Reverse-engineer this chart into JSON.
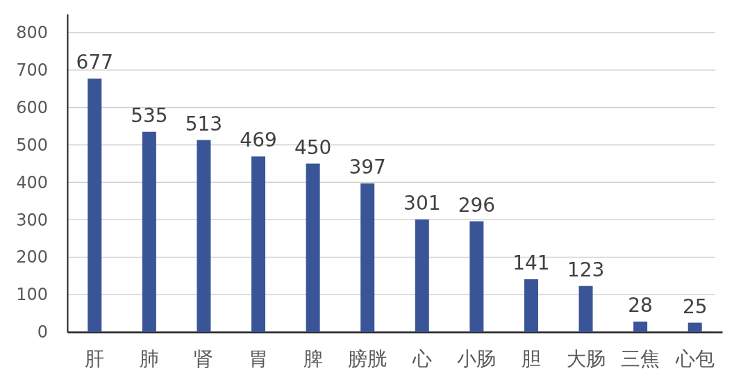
{
  "chart_data": {
    "type": "bar",
    "categories": [
      "肝",
      "肺",
      "肾",
      "胃",
      "脾",
      "膀胱",
      "心",
      "小肠",
      "胆",
      "大肠",
      "三焦",
      "心包"
    ],
    "values": [
      677,
      535,
      513,
      469,
      450,
      397,
      301,
      296,
      141,
      123,
      28,
      25
    ],
    "color": "#3a5597",
    "ylim": [
      0,
      850
    ],
    "yticks": [
      0,
      100,
      200,
      300,
      400,
      500,
      600,
      700,
      800
    ],
    "grid": "y",
    "data_labels": true
  }
}
